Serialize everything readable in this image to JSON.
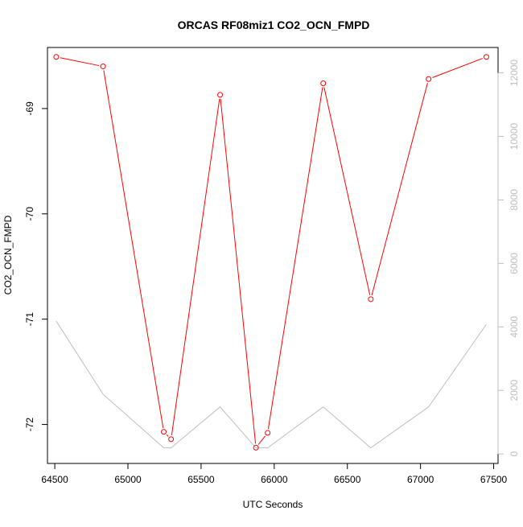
{
  "chart_data": {
    "type": "line",
    "title": "ORCAS RF08miz1 CO2_OCN_FMPD",
    "xlabel": "UTC Seconds",
    "ylabel": "CO2_OCN_FMPD",
    "y2label": "",
    "xlim": [
      64450,
      67530
    ],
    "ylim": [
      -72.37,
      -68.42
    ],
    "y2lim": [
      -300,
      12800
    ],
    "x_ticks": [
      64500,
      65000,
      65500,
      66000,
      66500,
      67000,
      67500
    ],
    "y_ticks": [
      -72,
      -71,
      -70,
      -69
    ],
    "y2_ticks": [
      0,
      2000,
      4000,
      6000,
      8000,
      10000,
      12000
    ],
    "grid": false,
    "legend": "none",
    "series": [
      {
        "axis": "left",
        "color": "#ff0000",
        "markers": "open-circle",
        "x": [
          64510,
          64830,
          65245,
          65295,
          65630,
          65875,
          65955,
          66335,
          66660,
          67055,
          67450
        ],
        "y": [
          -68.51,
          -68.6,
          -72.07,
          -72.14,
          -68.87,
          -72.22,
          -72.08,
          -68.76,
          -70.81,
          -68.72,
          -68.51
        ]
      },
      {
        "axis": "right",
        "color": "#bebebe",
        "markers": "none",
        "x": [
          64510,
          64830,
          65245,
          65295,
          65630,
          65875,
          65955,
          66335,
          66660,
          67055,
          67450
        ],
        "y": [
          4180,
          1880,
          190,
          190,
          1480,
          190,
          190,
          1480,
          190,
          1480,
          4080
        ]
      }
    ]
  }
}
